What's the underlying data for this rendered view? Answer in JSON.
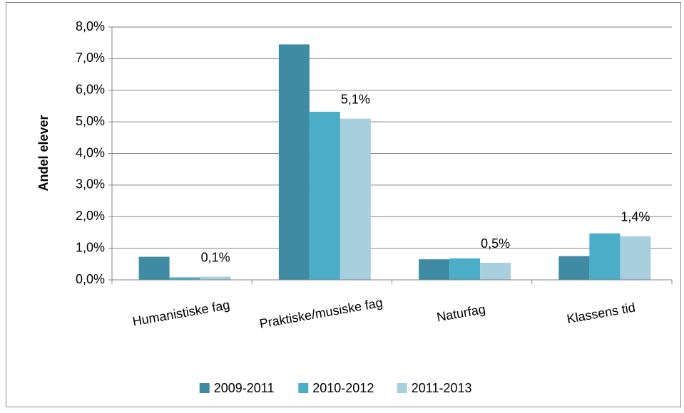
{
  "chart_data": {
    "type": "bar",
    "y_label": "Andel elever",
    "categories": [
      "Humanistiske fag",
      "Praktiske/musiske fag",
      "Naturfag",
      "Klassens tid"
    ],
    "series": [
      {
        "name": "2009-2011",
        "color": "#3e8ba3",
        "values": [
          0.73,
          7.45,
          0.65,
          0.75
        ]
      },
      {
        "name": "2010-2012",
        "color": "#4badc7",
        "values": [
          0.08,
          5.32,
          0.68,
          1.47
        ]
      },
      {
        "name": "2011-2013",
        "color": "#a7cfdd",
        "values": [
          0.1,
          5.1,
          0.54,
          1.38
        ],
        "value_labels": [
          "0,1%",
          "5,1%",
          "0,5%",
          "1,4%"
        ]
      }
    ],
    "ylim": [
      0,
      8
    ],
    "yticks": [
      {
        "value": 0,
        "label": "0,0%"
      },
      {
        "value": 1,
        "label": "1,0%"
      },
      {
        "value": 2,
        "label": "2,0%"
      },
      {
        "value": 3,
        "label": "3,0%"
      },
      {
        "value": 4,
        "label": "4,0%"
      },
      {
        "value": 5,
        "label": "5,0%"
      },
      {
        "value": 6,
        "label": "6,0%"
      },
      {
        "value": 7,
        "label": "7,0%"
      },
      {
        "value": 8,
        "label": "8,0%"
      }
    ],
    "grid": true,
    "legend": "bottom"
  }
}
